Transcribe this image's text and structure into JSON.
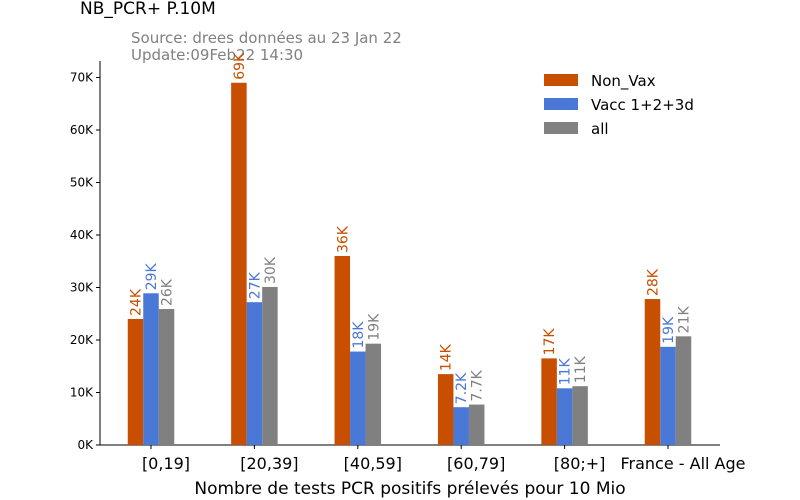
{
  "chart_data": {
    "type": "bar",
    "title": "NB_PCR+ P.10M",
    "subtitle_lines": [
      "Source: drees données au 23 Jan 22",
      "Update:09Feb22 14:30"
    ],
    "xlabel": "Nombre de tests PCR positifs prélevés pour 10 Mio",
    "ylabel": "",
    "categories": [
      "[0,19]",
      "[20,39]",
      "[40,59]",
      "[60,79]",
      "[80;+]",
      "France - All Age"
    ],
    "ylim": [
      0,
      72000
    ],
    "yticks": [
      0,
      10000,
      20000,
      30000,
      40000,
      50000,
      60000,
      70000
    ],
    "ytick_labels": [
      "0K",
      "10K",
      "20K",
      "30K",
      "40K",
      "50K",
      "60K",
      "70K"
    ],
    "legend_position": "top-right",
    "grid": false,
    "series": [
      {
        "name": "Non_Vax",
        "color": "#c84e00",
        "values": [
          24000,
          69000,
          36000,
          13500,
          16500,
          27800
        ],
        "labels": [
          "24K",
          "69K",
          "36K",
          "14K",
          "17K",
          "28K"
        ]
      },
      {
        "name": "Vacc 1+2+3d",
        "color": "#4a78d6",
        "values": [
          28900,
          27200,
          17800,
          7200,
          10800,
          18700
        ],
        "labels": [
          "29K",
          "27K",
          "18K",
          "7.2K",
          "11K",
          "19K"
        ]
      },
      {
        "name": "all",
        "color": "#808080",
        "values": [
          25900,
          30100,
          19300,
          7700,
          11200,
          20700
        ],
        "labels": [
          "26K",
          "30K",
          "19K",
          "7.7K",
          "11K",
          "21K"
        ]
      }
    ]
  }
}
